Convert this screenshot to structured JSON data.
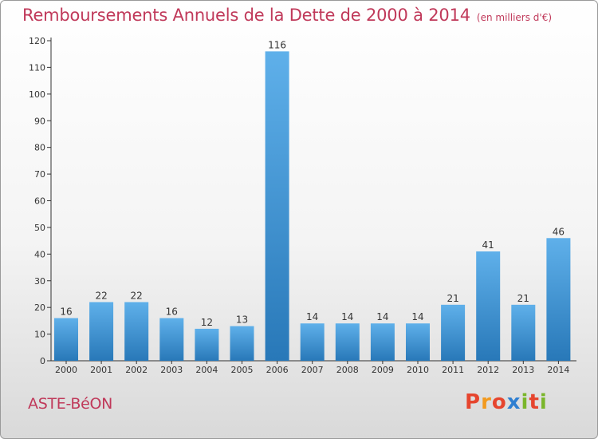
{
  "header": {
    "title": "Remboursements Annuels de la Dette de 2000 à 2014",
    "subtitle": "(en milliers d'€)"
  },
  "footer": {
    "commune": "ASTE-BéON",
    "logo_text": "Proxiti"
  },
  "colors": {
    "title": "#c0395a",
    "bar_light": "#5fb0ea",
    "bar_dark": "#2878b8",
    "logo": [
      "#e6452e",
      "#f29a1f",
      "#e6452e",
      "#2f7fd1",
      "#7ab62b",
      "#e6452e",
      "#7ab62b"
    ]
  },
  "chart_data": {
    "type": "bar",
    "title": "Remboursements Annuels de la Dette de 2000 à 2014",
    "subtitle": "(en milliers d'€)",
    "xlabel": "",
    "ylabel": "",
    "categories": [
      "2000",
      "2001",
      "2002",
      "2003",
      "2004",
      "2005",
      "2006",
      "2007",
      "2008",
      "2009",
      "2010",
      "2011",
      "2012",
      "2013",
      "2014"
    ],
    "values": [
      16,
      22,
      22,
      16,
      12,
      13,
      116,
      14,
      14,
      14,
      14,
      21,
      41,
      21,
      46
    ],
    "ylim": [
      0,
      120
    ],
    "yticks": [
      0,
      10,
      20,
      30,
      40,
      50,
      60,
      70,
      80,
      90,
      100,
      110,
      120
    ],
    "grid": false,
    "legend": "none"
  }
}
